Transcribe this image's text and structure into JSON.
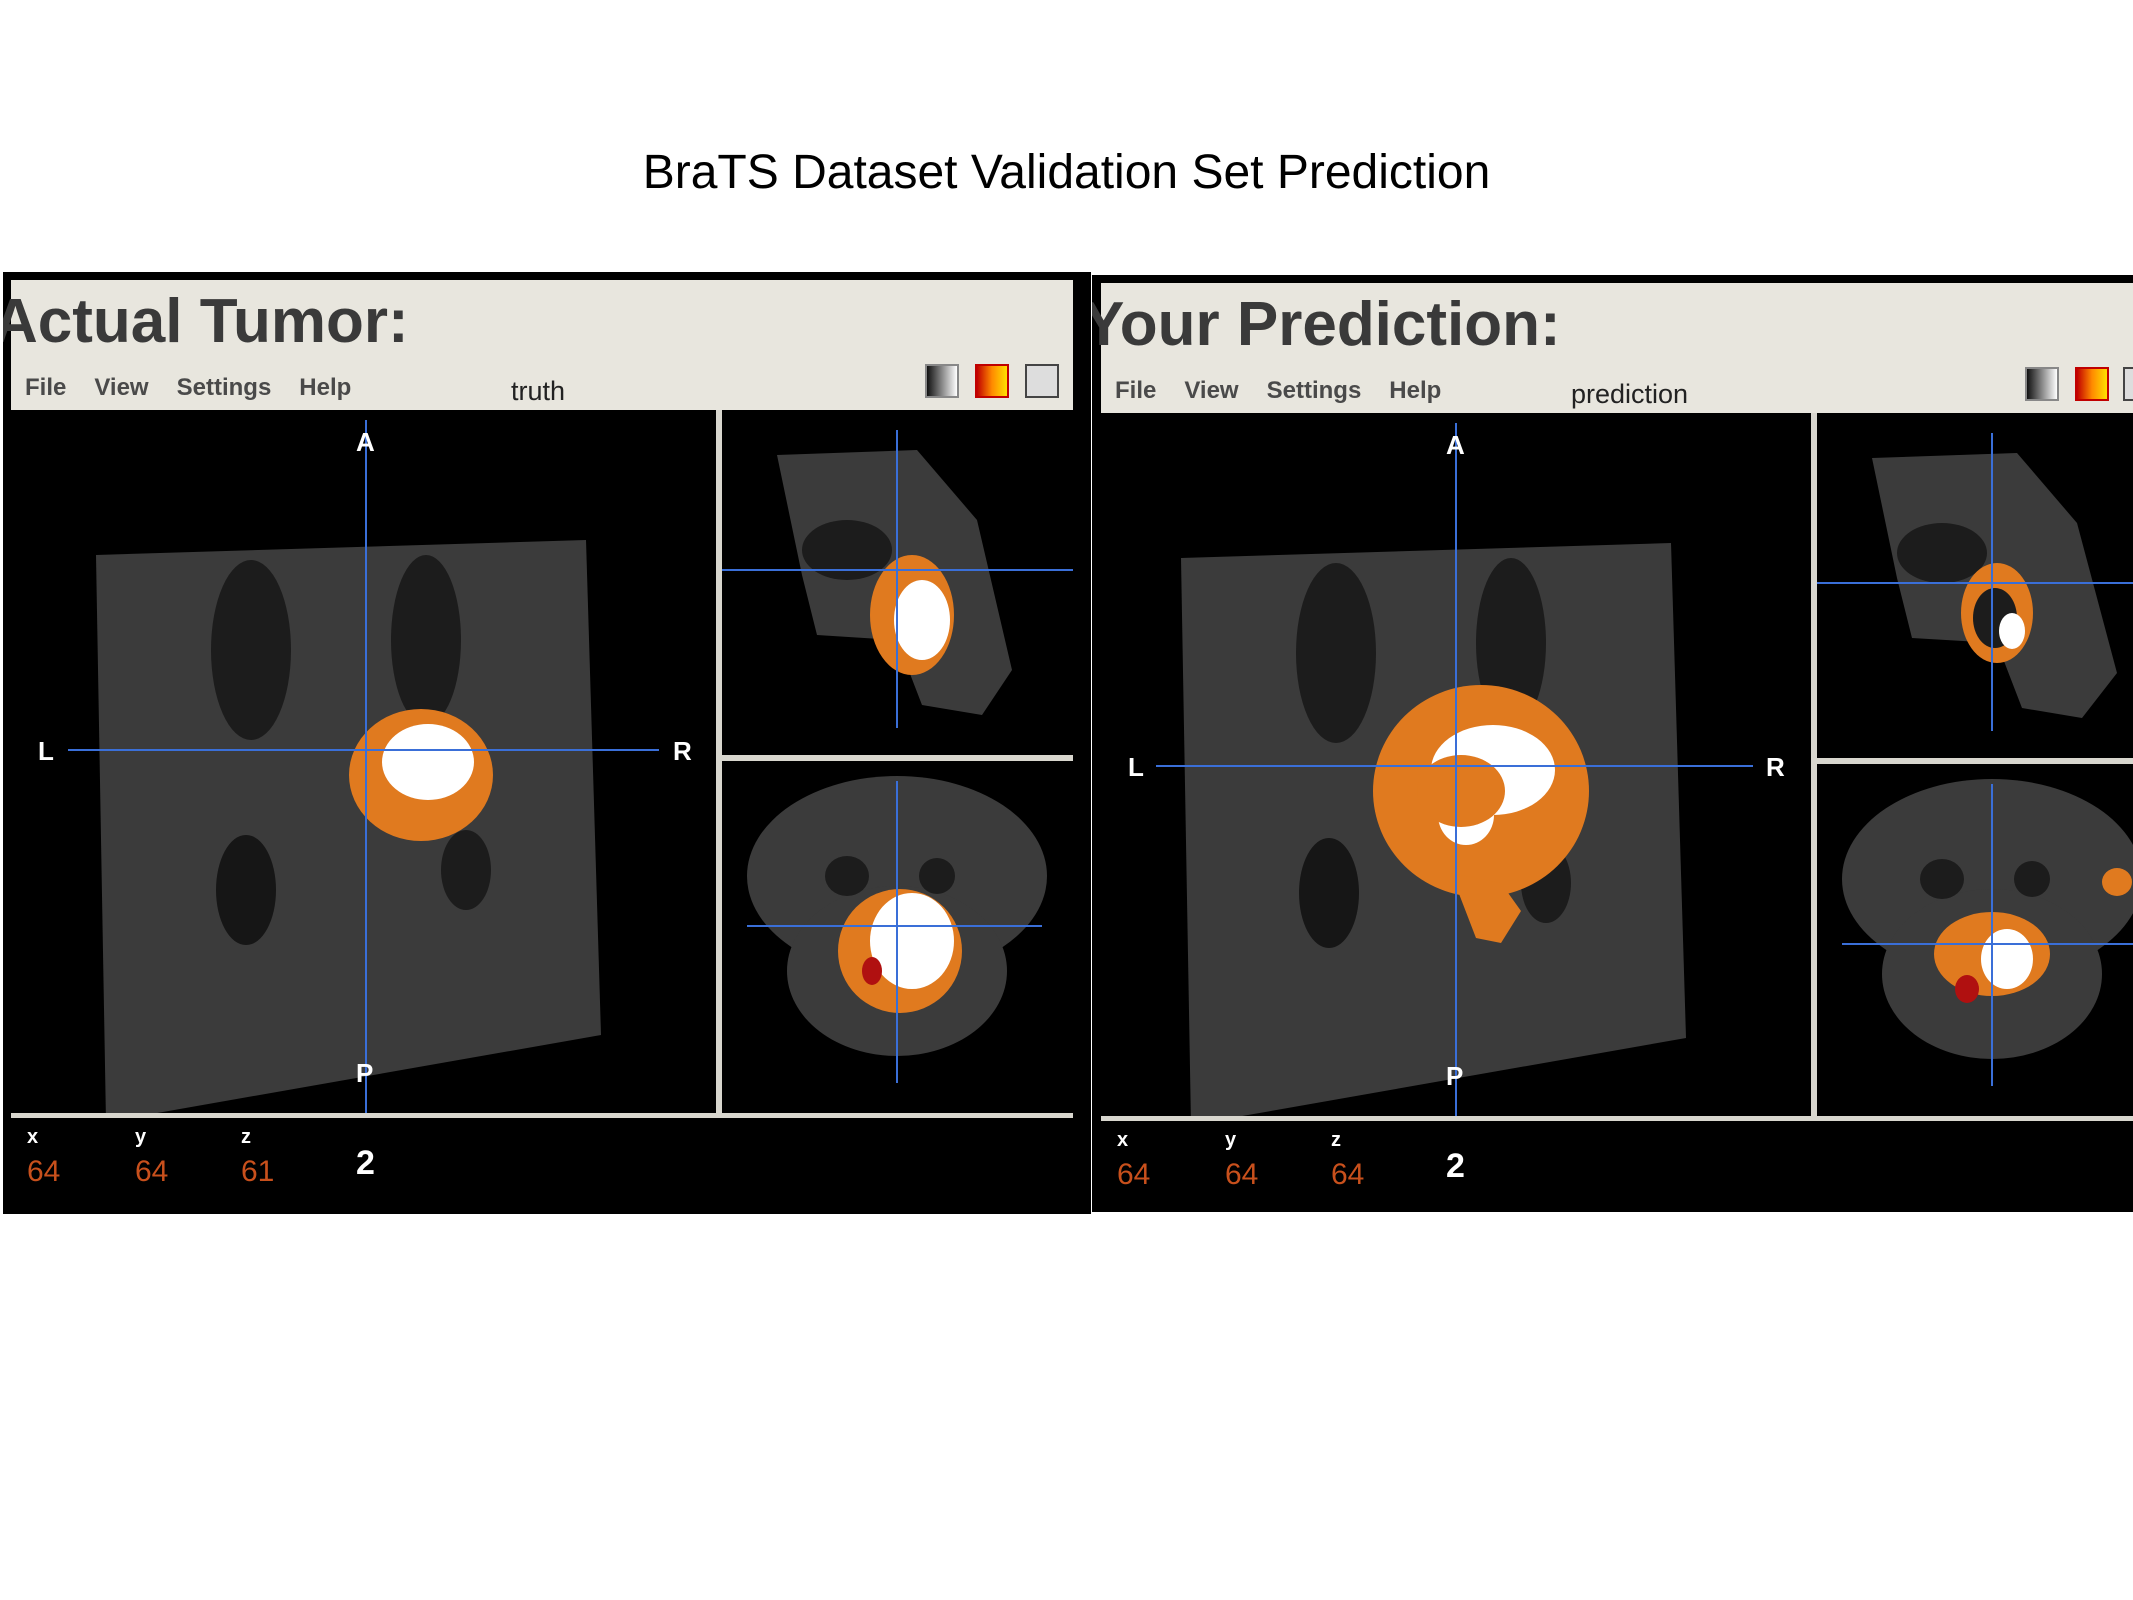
{
  "page_title": "BraTS Dataset Validation Set Prediction",
  "viewers": {
    "truth": {
      "heading": "Actual Tumor:",
      "image_name": "truth",
      "menu": [
        "File",
        "View",
        "Settings",
        "Help"
      ],
      "orientation": {
        "anterior": "A",
        "posterior": "P",
        "left": "L",
        "right": "R"
      },
      "coords": {
        "x_label": "x",
        "y_label": "y",
        "z_label": "z",
        "x": "64",
        "y": "64",
        "z": "61",
        "value": "2"
      }
    },
    "prediction": {
      "heading": "Your Prediction:",
      "image_name": "prediction",
      "menu": [
        "File",
        "View",
        "Settings",
        "Help"
      ],
      "orientation": {
        "anterior": "A",
        "posterior": "P",
        "left": "L",
        "right": "R"
      },
      "coords": {
        "x_label": "x",
        "y_label": "y",
        "z_label": "z",
        "x": "64",
        "y": "64",
        "z": "64",
        "value": "2"
      }
    }
  },
  "colors": {
    "tumor_edema": "#e07a1f",
    "tumor_core": "#ffffff",
    "crosshair": "#3a6fd8",
    "coord_value": "#c8501c",
    "panel_bg": "#e8e6de"
  },
  "icons": [
    "grayscale-lut-icon",
    "heat-lut-icon",
    "swap-view-icon"
  ]
}
